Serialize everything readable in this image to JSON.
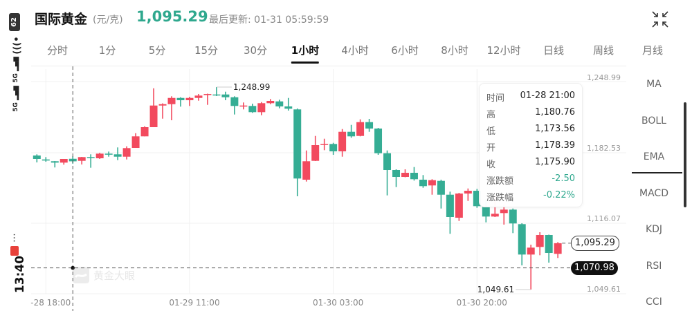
{
  "status_bar": {
    "time": "13:40",
    "battery": "62",
    "network_1": "5G",
    "network_2": "5G",
    "more": "⋯"
  },
  "header": {
    "title": "国际黄金",
    "unit": "(元/克)",
    "price": "1,095.29",
    "last_update": "最后更新: 01-31 05:59:59",
    "price_color": "#2fa88e"
  },
  "tabs": [
    {
      "label": "分时"
    },
    {
      "label": "1分"
    },
    {
      "label": "5分"
    },
    {
      "label": "15分"
    },
    {
      "label": "30分"
    },
    {
      "label": "1小时",
      "active": true
    },
    {
      "label": "4小时"
    },
    {
      "label": "6小时"
    },
    {
      "label": "8小时"
    },
    {
      "label": "12小时"
    },
    {
      "label": "日线"
    },
    {
      "label": "周线"
    },
    {
      "label": "月线"
    }
  ],
  "indicators": [
    {
      "label": "MA"
    },
    {
      "label": "BOLL"
    },
    {
      "label": "EMA",
      "active": true
    },
    {
      "label": "MACD"
    },
    {
      "label": "KDJ"
    },
    {
      "label": "RSI"
    },
    {
      "label": "CCI"
    }
  ],
  "tooltip": {
    "rows": [
      {
        "k": "时间",
        "v": "01-28 21:00"
      },
      {
        "k": "高",
        "v": "1,180.76"
      },
      {
        "k": "低",
        "v": "1,173.56"
      },
      {
        "k": "开",
        "v": "1,178.39"
      },
      {
        "k": "收",
        "v": "1,175.90"
      },
      {
        "k": "涨跌额",
        "v": "-2.50",
        "color": "green"
      },
      {
        "k": "涨跌幅",
        "v": "-0.22%",
        "color": "green"
      }
    ]
  },
  "watermark": "黄金大眼",
  "chart_data": {
    "type": "candlestick",
    "interval": "1小时",
    "ylim": [
      1049.61,
      1248.99
    ],
    "y_tick_labels": [
      "1,248.99",
      "1,182.53",
      "1,116.07",
      "1,049.61"
    ],
    "x_tick_labels": [
      {
        "index": 1,
        "label": "-28 18:00"
      },
      {
        "index": 17,
        "label": "01-29 11:00"
      },
      {
        "index": 33,
        "label": "01-30 03:00"
      },
      {
        "index": 49,
        "label": "01-30 20:00"
      }
    ],
    "max_label": "1,248.99",
    "min_label": "1,049.61",
    "last_price_label": "1,095.29",
    "crosshair": {
      "index": 4,
      "price_label": "1,070.98",
      "price": 1070.98
    },
    "colors": {
      "up": "#f24a5e",
      "down": "#35ad94"
    },
    "grid": true,
    "ohlc": [
      [
        1181.62,
        1182.78,
        1174.81,
        1178.22
      ],
      [
        1177.74,
        1180.05,
        1175.49,
        1176.65
      ],
      [
        1175.97,
        1176.17,
        1169.85,
        1174.61
      ],
      [
        1174.61,
        1178.22,
        1172.57,
        1178.22
      ],
      [
        1178.39,
        1180.76,
        1173.56,
        1175.9
      ],
      [
        1176.38,
        1180.26,
        1172.77,
        1180.05
      ],
      [
        1180.05,
        1182.78,
        1169.58,
        1179.1
      ],
      [
        1178.89,
        1184.34,
        1178.22,
        1183.45
      ],
      [
        1183.45,
        1185.49,
        1180.46,
        1182.78
      ],
      [
        1182.78,
        1189.58,
        1177.06,
        1180.46
      ],
      [
        1180.46,
        1190.67,
        1177.74,
        1188.9
      ],
      [
        1189.1,
        1203.6,
        1189.1,
        1200.47
      ],
      [
        1200.47,
        1210.41,
        1200.47,
        1209.52
      ],
      [
        1209.52,
        1247.8,
        1209.52,
        1230.82
      ],
      [
        1230.82,
        1233.0,
        1217.89,
        1232.17
      ],
      [
        1232.17,
        1239.94,
        1216.32,
        1238.3
      ],
      [
        1238.3,
        1238.99,
        1229.73,
        1236.06
      ],
      [
        1236.06,
        1239.45,
        1230.41,
        1238.3
      ],
      [
        1238.3,
        1242.18,
        1235.58,
        1240.62
      ],
      [
        1241.3,
        1242.52,
        1231.5,
        1242.18
      ],
      [
        1241.71,
        1248.99,
        1240.14,
        1241.3
      ],
      [
        1241.71,
        1244.43,
        1236.06,
        1238.98
      ],
      [
        1238.98,
        1239.94,
        1222.0,
        1230.41
      ],
      [
        1230.14,
        1233.82,
        1227.01,
        1230.82
      ],
      [
        1230.41,
        1232.66,
        1223.61,
        1224.29
      ],
      [
        1224.29,
        1234.22,
        1221.29,
        1233.13
      ],
      [
        1233.13,
        1237.22,
        1232.18,
        1235.38
      ],
      [
        1234.9,
        1236.54,
        1228.1,
        1229.93
      ],
      [
        1229.93,
        1238.3,
        1225.86,
        1227.69
      ],
      [
        1227.01,
        1227.89,
        1141.47,
        1158.96
      ],
      [
        1157.8,
        1186.58,
        1155.97,
        1175.97
      ],
      [
        1176.38,
        1200.88,
        1176.17,
        1191.83
      ],
      [
        1192.3,
        1198.15,
        1186.86,
        1192.98
      ],
      [
        1192.98,
        1194.07,
        1182.33,
        1185.7
      ],
      [
        1185.7,
        1207.68,
        1180.46,
        1204.96
      ],
      [
        1204.96,
        1211.77,
        1199.11,
        1200.47
      ],
      [
        1200.88,
        1217.21,
        1200.47,
        1214.49
      ],
      [
        1214.49,
        1217.69,
        1204.96,
        1208.16
      ],
      [
        1208.16,
        1208.84,
        1182.3,
        1183.86
      ],
      [
        1183.86,
        1186.58,
        1142.35,
        1167.33
      ],
      [
        1167.33,
        1168.0,
        1150.52,
        1160.52
      ],
      [
        1160.52,
        1168.0,
        1160.2,
        1164.61
      ],
      [
        1164.61,
        1170.26,
        1156.92,
        1158.28
      ],
      [
        1157.8,
        1162.36,
        1149.84,
        1151.47
      ],
      [
        1152.15,
        1158.28,
        1143.03,
        1157.33
      ],
      [
        1156.65,
        1157.8,
        1129.42,
        1143.03
      ],
      [
        1143.03,
        1146.03,
        1104.51,
        1121.06
      ],
      [
        1120.37,
        1144.85,
        1117.16,
        1144.17
      ],
      [
        1144.17,
        1149.16,
        1136.9,
        1146.89
      ],
      [
        1146.89,
        1148.75,
        1130.11,
        1131.74
      ],
      [
        1131.06,
        1138.54,
        1115.81,
        1121.52
      ],
      [
        1121.52,
        1142.35,
        1121.06,
        1124.25
      ],
      [
        1124.93,
        1133.3,
        1113.57,
        1128.33
      ],
      [
        1128.33,
        1129.42,
        1105.2,
        1114.72
      ],
      [
        1114.04,
        1114.92,
        1073.41,
        1084.1
      ],
      [
        1084.1,
        1093.84,
        1049.61,
        1090.91
      ],
      [
        1091.59,
        1106.08,
        1083.42,
        1103.36
      ],
      [
        1103.36,
        1103.7,
        1076.14,
        1085.67
      ],
      [
        1084.8,
        1096.37,
        1080.7,
        1095.29
      ]
    ]
  }
}
